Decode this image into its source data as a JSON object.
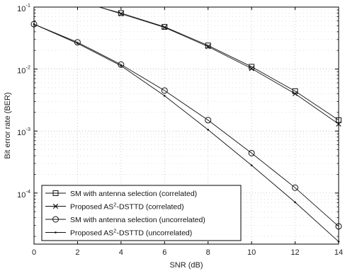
{
  "chart_data": {
    "type": "line",
    "xlabel": "SNR (dB)",
    "ylabel": "Bit error rate (BER)",
    "xlim": [
      0,
      14
    ],
    "ylim": [
      1.5e-05,
      0.1
    ],
    "yscale": "log",
    "grid": true,
    "legend_position": "bottom-left",
    "x_ticks": [
      "0",
      "2",
      "4",
      "6",
      "8",
      "10",
      "12",
      "14"
    ],
    "y_ticks": [
      {
        "base": "10",
        "exp": "-4",
        "value": 0.0001
      },
      {
        "base": "10",
        "exp": "-3",
        "value": 0.001
      },
      {
        "base": "10",
        "exp": "-2",
        "value": 0.01
      },
      {
        "base": "10",
        "exp": "-1",
        "value": 0.1
      }
    ],
    "series": [
      {
        "name": "SM with antenna selection (correlated)",
        "legend_prefix": "SM with antenna selection (correlated)",
        "legend_sup": "",
        "legend_suffix": "",
        "marker": "square",
        "x": [
          3,
          4,
          6,
          8,
          10,
          12,
          14
        ],
        "y": [
          0.1,
          0.08,
          0.048,
          0.024,
          0.0109,
          0.0044,
          0.0015
        ]
      },
      {
        "name": "Proposed AS2-DSTTD (correlated)",
        "legend_prefix": "Proposed AS",
        "legend_sup": "2",
        "legend_suffix": "-DSTTD (correlated)",
        "marker": "x",
        "x": [
          3,
          4,
          6,
          8,
          10,
          12,
          14
        ],
        "y": [
          0.1,
          0.078,
          0.047,
          0.023,
          0.0102,
          0.004,
          0.0013
        ]
      },
      {
        "name": "SM with antenna selection (uncorrelated)",
        "legend_prefix": "SM with antenna selection (uncorrelated)",
        "legend_sup": "",
        "legend_suffix": "",
        "marker": "circle",
        "x": [
          0,
          2,
          4,
          6,
          8,
          10,
          12,
          14
        ],
        "y": [
          0.053,
          0.027,
          0.0118,
          0.0045,
          0.0015,
          0.00044,
          0.000122,
          2.9e-05
        ]
      },
      {
        "name": "Proposed AS2-DSTTD (uncorrelated)",
        "legend_prefix": "Proposed AS",
        "legend_sup": "2",
        "legend_suffix": "-DSTTD (uncorrelated)",
        "marker": "dot",
        "x": [
          0,
          2,
          4,
          6,
          8,
          10,
          12,
          14
        ],
        "y": [
          0.053,
          0.026,
          0.0113,
          0.0037,
          0.00105,
          0.00028,
          7.1e-05,
          1.65e-05
        ]
      }
    ]
  }
}
